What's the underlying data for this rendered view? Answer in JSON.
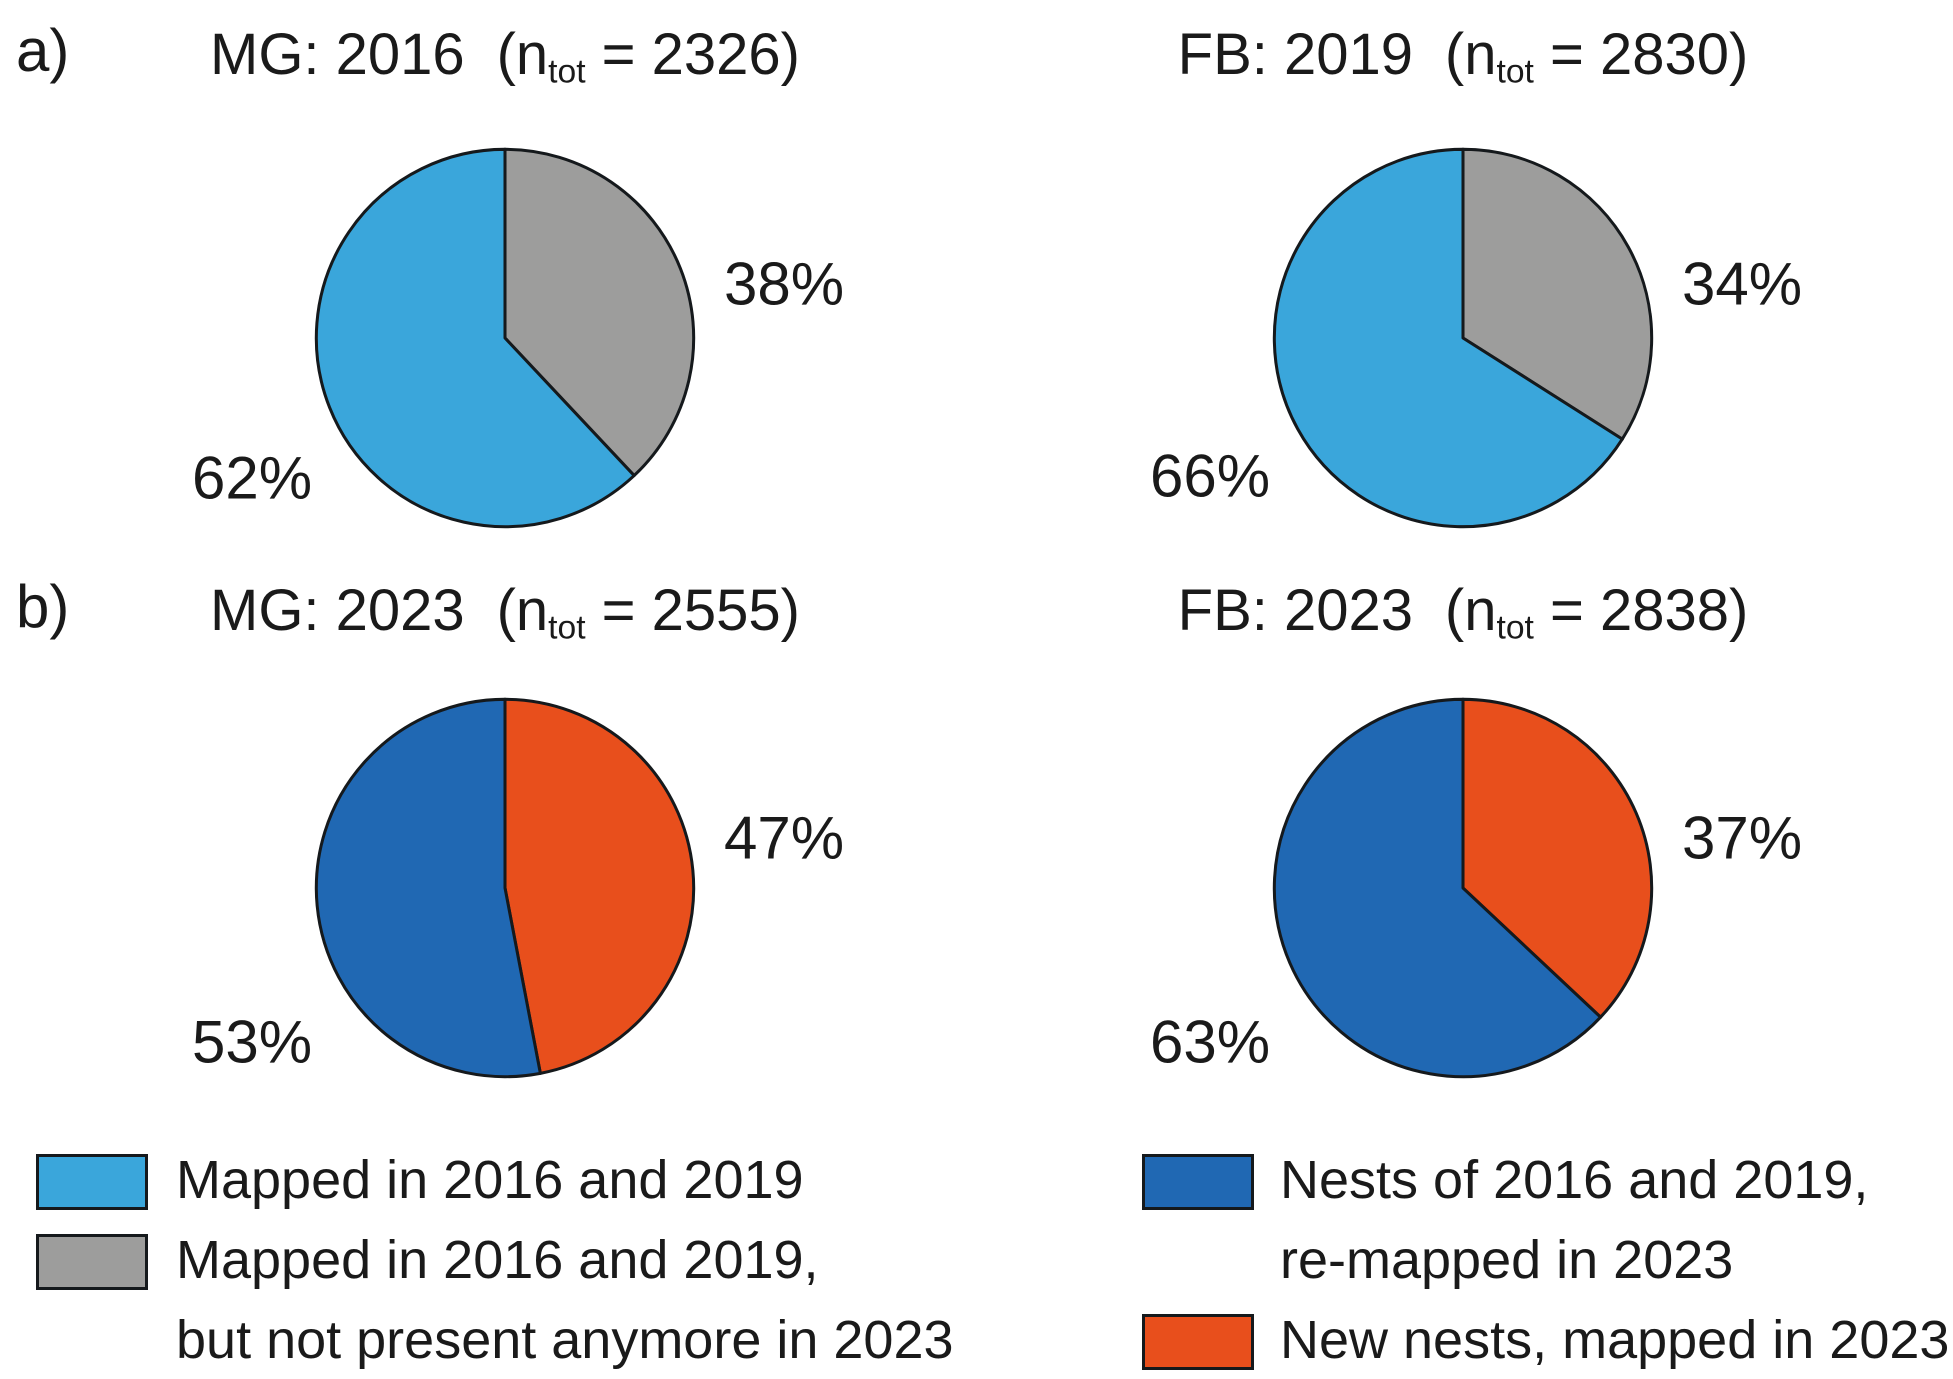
{
  "figure": {
    "panel_a_label": "a)",
    "panel_b_label": "b)",
    "background": "#ffffff",
    "outline_color": "#15191c",
    "text_color": "#1a1a1a",
    "colors": {
      "light_blue": "#3AA6DB",
      "gray": "#9D9D9C",
      "dark_blue": "#2068B3",
      "orange": "#E84F1C"
    }
  },
  "chart_data": [
    {
      "type": "pie",
      "panel": "a",
      "site": "MG",
      "year": "2016",
      "title": "MG: 2016",
      "n_prefix": "(n",
      "n_sub": "tot",
      "n_suffix": " = 2326)",
      "n_tot": 2326,
      "start_angle_deg": 0,
      "direction": "clockwise",
      "slices": [
        {
          "name": "Mapped in 2016 and 2019, but not present anymore in 2023",
          "value": 38,
          "label_text": "38%",
          "color": "#9D9D9C"
        },
        {
          "name": "Mapped in 2016 and 2019",
          "value": 62,
          "label_text": "62%",
          "color": "#3AA6DB"
        }
      ]
    },
    {
      "type": "pie",
      "panel": "a",
      "site": "FB",
      "year": "2019",
      "title": "FB: 2019",
      "n_prefix": "(n",
      "n_sub": "tot",
      "n_suffix": " = 2830)",
      "n_tot": 2830,
      "start_angle_deg": 0,
      "direction": "clockwise",
      "slices": [
        {
          "name": "Mapped in 2016 and 2019, but not present anymore in 2023",
          "value": 34,
          "label_text": "34%",
          "color": "#9D9D9C"
        },
        {
          "name": "Mapped in 2016 and 2019",
          "value": 66,
          "label_text": "66%",
          "color": "#3AA6DB"
        }
      ]
    },
    {
      "type": "pie",
      "panel": "b",
      "site": "MG",
      "year": "2023",
      "title": "MG: 2023",
      "n_prefix": "(n",
      "n_sub": "tot",
      "n_suffix": " = 2555)",
      "n_tot": 2555,
      "start_angle_deg": 0,
      "direction": "clockwise",
      "slices": [
        {
          "name": "New nests, mapped in 2023",
          "value": 47,
          "label_text": "47%",
          "color": "#E84F1C"
        },
        {
          "name": "Nests of 2016 and 2019, re-mapped in 2023",
          "value": 53,
          "label_text": "53%",
          "color": "#2068B3"
        }
      ]
    },
    {
      "type": "pie",
      "panel": "b",
      "site": "FB",
      "year": "2023",
      "title": "FB: 2023",
      "n_prefix": "(n",
      "n_sub": "tot",
      "n_suffix": " = 2838)",
      "n_tot": 2838,
      "start_angle_deg": 0,
      "direction": "clockwise",
      "slices": [
        {
          "name": "New nests, mapped in 2023",
          "value": 37,
          "label_text": "37%",
          "color": "#E84F1C"
        },
        {
          "name": "Nests of 2016 and 2019, re-mapped in 2023",
          "value": 63,
          "label_text": "63%",
          "color": "#2068B3"
        }
      ]
    }
  ],
  "legend_left": {
    "items": [
      {
        "swatch_color": "#3AA6DB",
        "lines": [
          "Mapped in 2016 and 2019"
        ]
      },
      {
        "swatch_color": "#9D9D9C",
        "lines": [
          "Mapped in 2016 and 2019,",
          "but not present anymore in 2023"
        ]
      }
    ]
  },
  "legend_right": {
    "items": [
      {
        "swatch_color": "#2068B3",
        "lines": [
          "Nests of 2016 and 2019,",
          "re-mapped in 2023"
        ]
      },
      {
        "swatch_color": "#E84F1C",
        "lines": [
          "New nests, mapped in 2023"
        ]
      }
    ]
  }
}
